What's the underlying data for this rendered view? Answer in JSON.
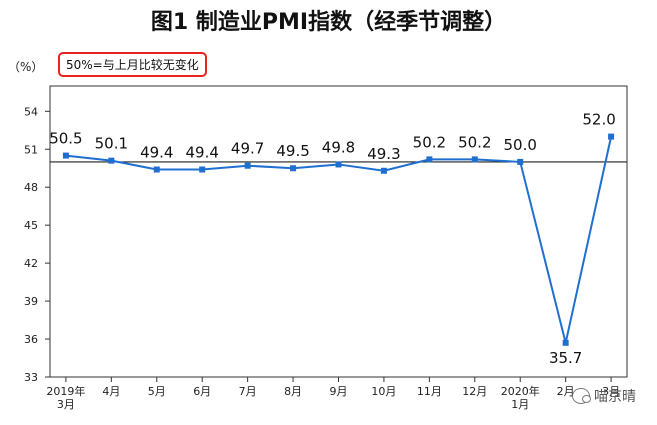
{
  "chart_data": {
    "type": "line",
    "title": "图1 制造业PMI指数（经季节调整）",
    "unit": "（%）",
    "annotation": "50%=与上月比较无变化",
    "categories": [
      [
        "2019年",
        "3月"
      ],
      [
        "4月"
      ],
      [
        "5月"
      ],
      [
        "6月"
      ],
      [
        "7月"
      ],
      [
        "8月"
      ],
      [
        "9月"
      ],
      [
        "10月"
      ],
      [
        "11月"
      ],
      [
        "12月"
      ],
      [
        "2020年",
        "1月"
      ],
      [
        "2月"
      ],
      [
        "3月"
      ]
    ],
    "series": [
      {
        "values": [
          50.5,
          50.1,
          49.4,
          49.4,
          49.7,
          49.5,
          49.8,
          49.3,
          50.2,
          50.2,
          50.0,
          35.7,
          52.0
        ],
        "labels": [
          "50.5",
          "50.1",
          "49.4",
          "49.4",
          "49.7",
          "49.5",
          "49.8",
          "49.3",
          "50.2",
          "50.2",
          "50.0",
          "35.7",
          "52.0"
        ],
        "color": "#1f6fd1"
      }
    ],
    "reference_line": 50,
    "yticks": [
      33,
      36,
      39,
      42,
      45,
      48,
      51,
      54
    ],
    "ylim": [
      33,
      56
    ],
    "grid": false,
    "legend": "none"
  },
  "watermark": {
    "text": "喵京晴",
    "icon": "wechat-icon"
  }
}
